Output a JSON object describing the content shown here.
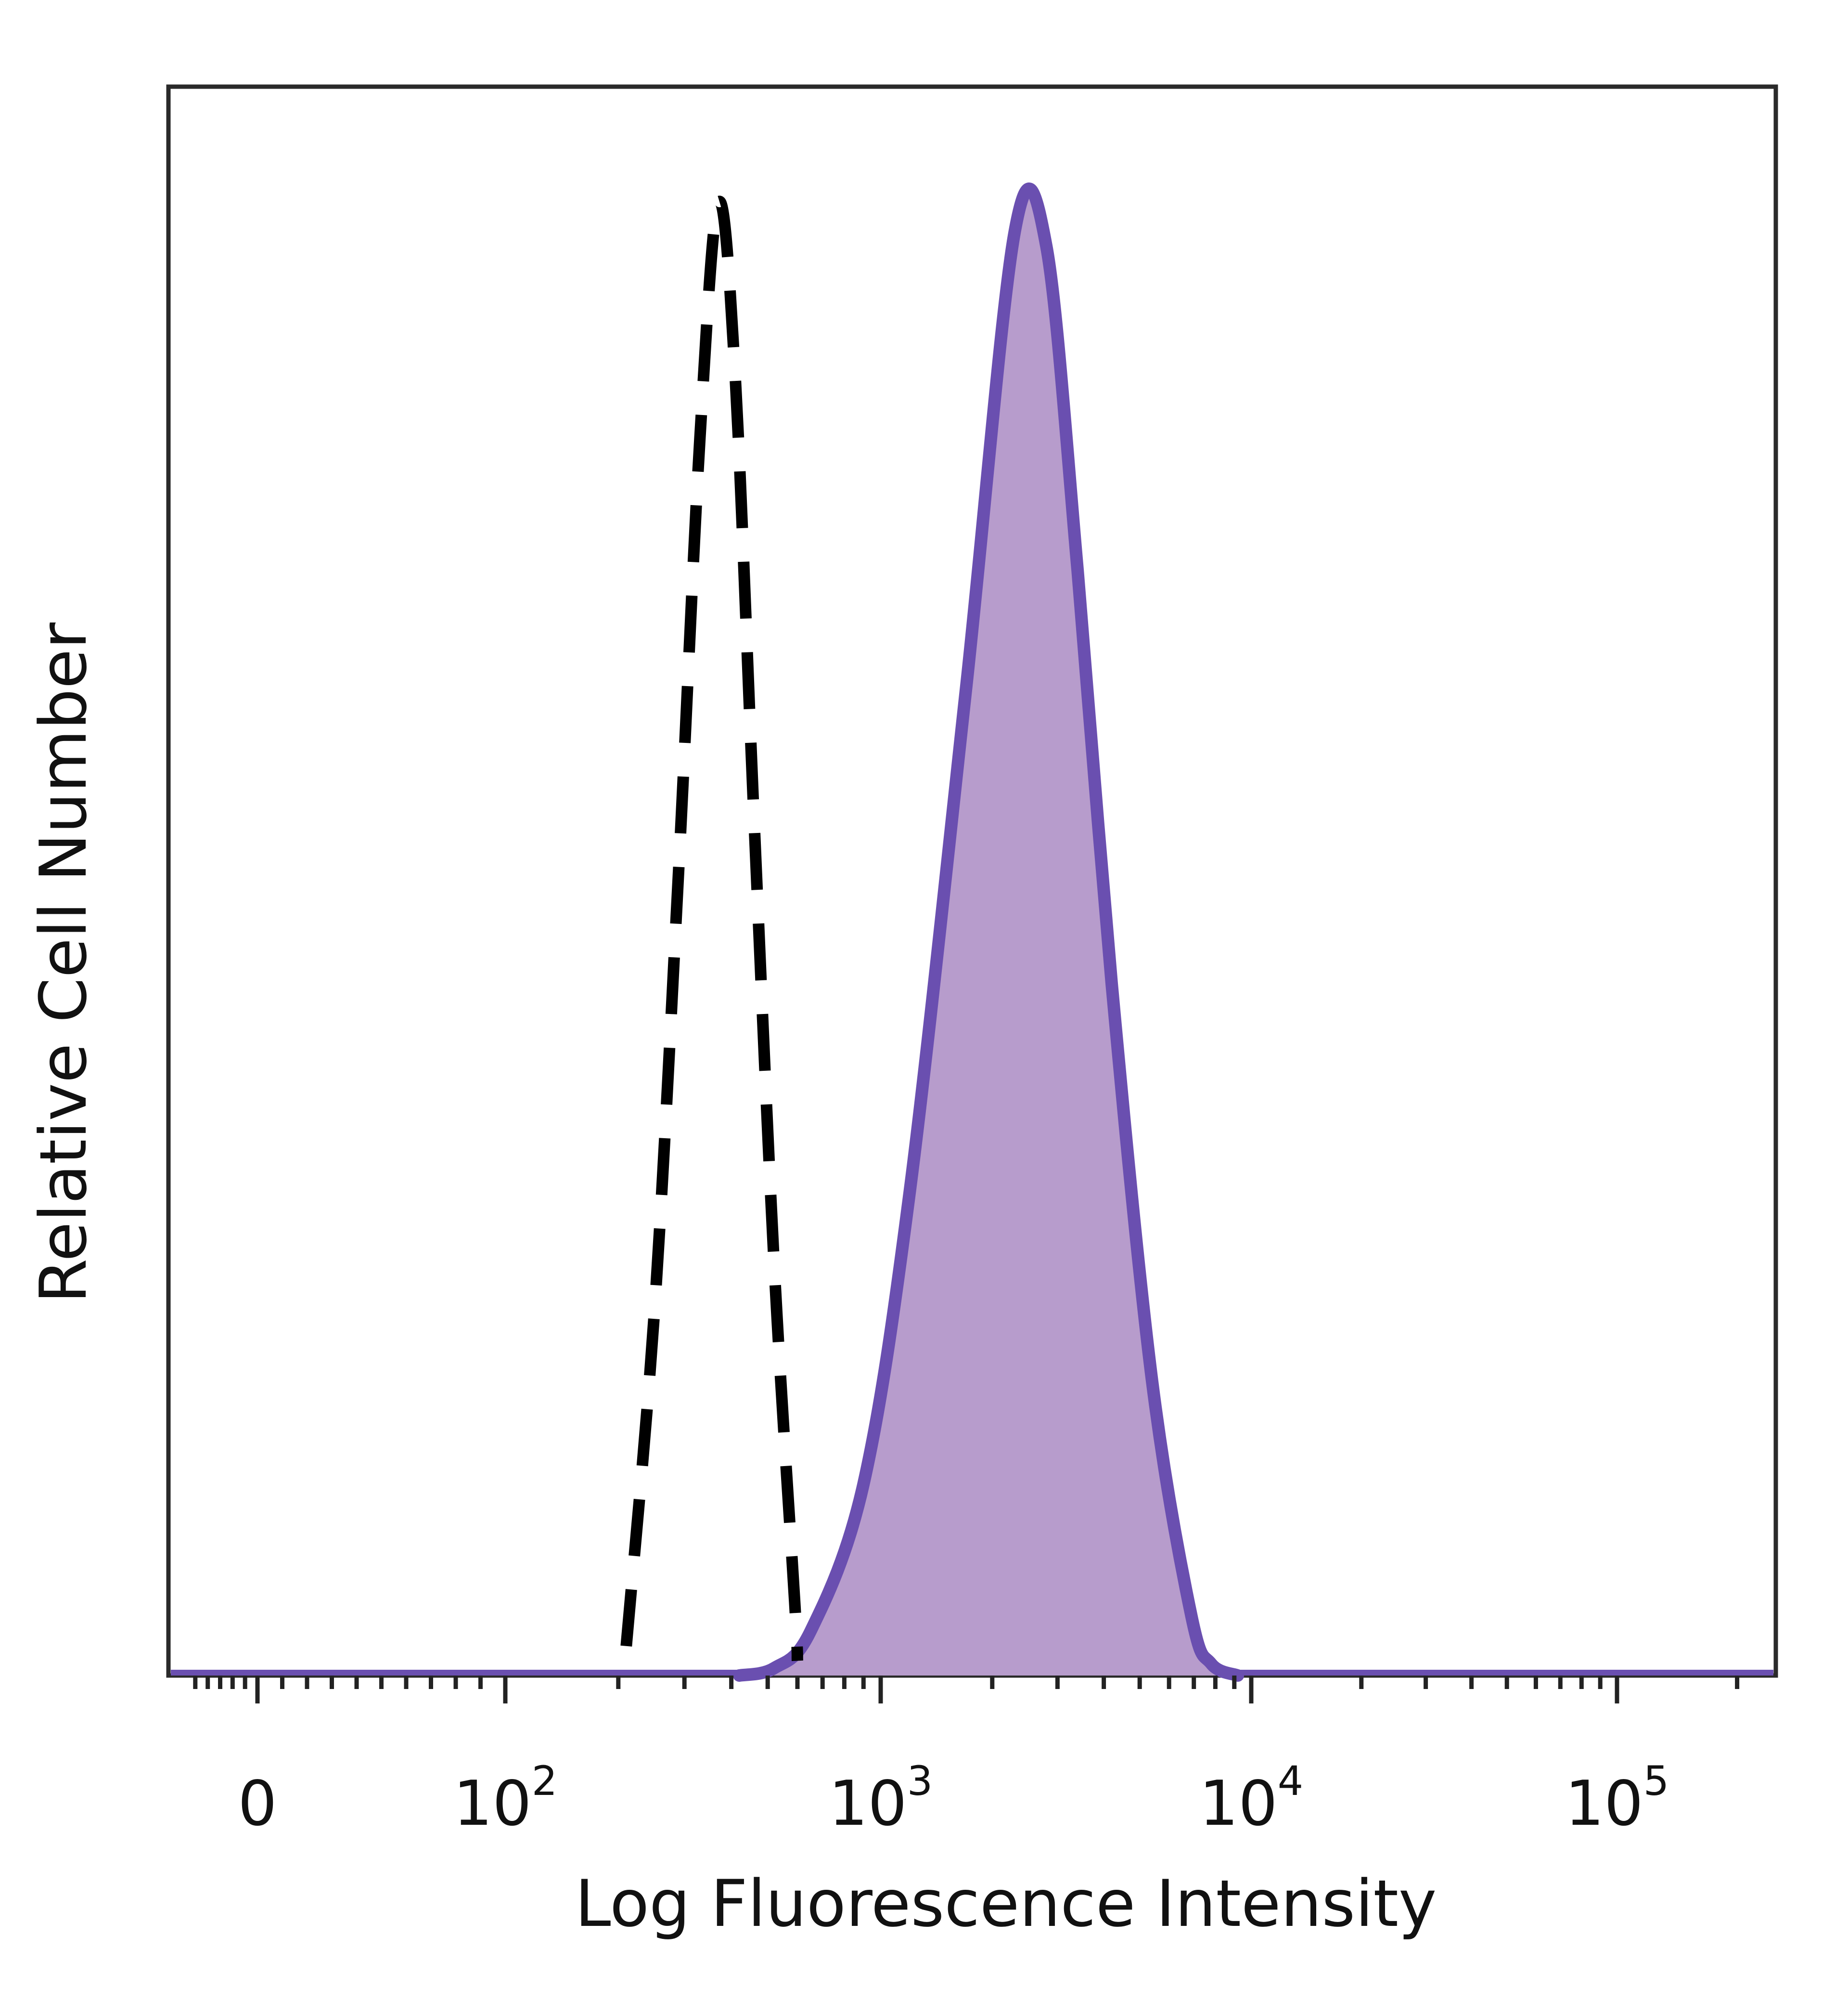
{
  "chart_data": {
    "type": "area",
    "title": "",
    "xlabel": "Log Fluorescence Intensity",
    "ylabel": "Relative Cell Number",
    "x_scale": "biexponential",
    "xlim": [
      -60,
      250000
    ],
    "ylim": [
      0,
      100
    ],
    "grid": false,
    "legend": "none",
    "x_ticks": [
      {
        "value": 0,
        "base": "0",
        "exp": ""
      },
      {
        "value": 100,
        "base": "10",
        "exp": "2"
      },
      {
        "value": 1000,
        "base": "10",
        "exp": "3"
      },
      {
        "value": 10000,
        "base": "10",
        "exp": "4"
      },
      {
        "value": 100000,
        "base": "10",
        "exp": "5"
      }
    ],
    "series": [
      {
        "style": "dashed",
        "color": "#000000",
        "fill": "none",
        "x": [
          210,
          250,
          290,
          330,
          370,
          410,
          460,
          520,
          590,
          600
        ],
        "y": [
          2,
          25,
          55,
          84,
          100,
          88,
          58,
          28,
          5,
          1
        ]
      },
      {
        "style": "solid",
        "color": "#6a4fb0",
        "fill": "#b79ccc",
        "x": [
          420,
          520,
          650,
          900,
          1200,
          1700,
          2300,
          2800,
          3400,
          4200,
          5400,
          6900,
          7800,
          9200
        ],
        "y": [
          0,
          0.5,
          3,
          13,
          33,
          67,
          98,
          97,
          75,
          47,
          20,
          4,
          0.8,
          0
        ]
      }
    ]
  }
}
